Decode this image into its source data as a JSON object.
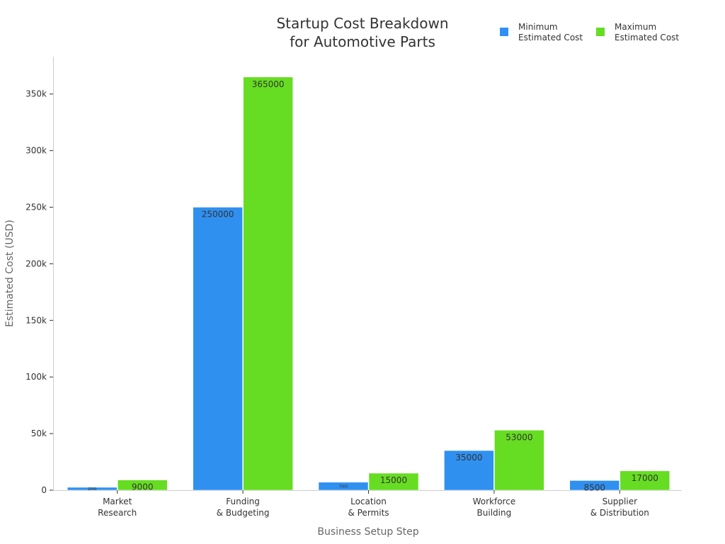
{
  "chart_data": {
    "type": "bar",
    "title": [
      "Startup Cost Breakdown",
      "for Automotive Parts"
    ],
    "xlabel": "Business Setup Step",
    "ylabel": "Estimated Cost (USD)",
    "categories": [
      [
        "Market",
        "Research"
      ],
      [
        "Funding",
        "& Budgeting"
      ],
      [
        "Location",
        "& Permits"
      ],
      [
        "Workforce",
        "Building"
      ],
      [
        "Supplier",
        "& Distribution"
      ]
    ],
    "series": [
      {
        "name": [
          "Minimum",
          "Estimated Cost"
        ],
        "color": "#3090F0",
        "values": [
          2500,
          250000,
          7000,
          35000,
          8500
        ],
        "labels": [
          "2500",
          "250000",
          "7000",
          "35000",
          "8500"
        ]
      },
      {
        "name": [
          "Maximum",
          "Estimated Cost"
        ],
        "color": "#66DD22",
        "values": [
          9000,
          365000,
          15000,
          53000,
          17000
        ],
        "labels": [
          "9000",
          "365000",
          "15000",
          "53000",
          "17000"
        ]
      }
    ],
    "ylim": [
      0,
      383000
    ],
    "yticks": [
      0,
      50000,
      100000,
      150000,
      200000,
      250000,
      300000,
      350000
    ],
    "ytick_labels": [
      "0",
      "50k",
      "100k",
      "150k",
      "200k",
      "250k",
      "300k",
      "350k"
    ],
    "grid": false,
    "legend": "top-right"
  }
}
